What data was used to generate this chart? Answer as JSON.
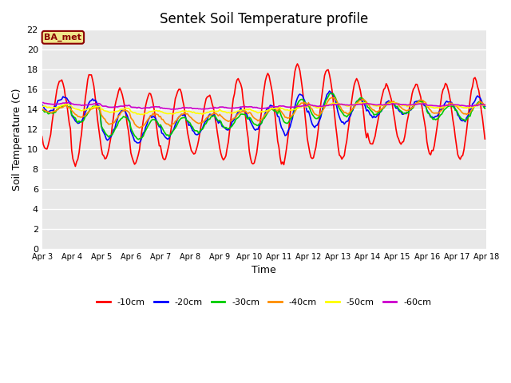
{
  "title": "Sentek Soil Temperature profile",
  "xlabel": "Time",
  "ylabel": "Soil Temperature (C)",
  "ylim": [
    0,
    22
  ],
  "yticks": [
    0,
    2,
    4,
    6,
    8,
    10,
    12,
    14,
    16,
    18,
    20,
    22
  ],
  "background_color": "#ffffff",
  "plot_bg_color": "#e8e8e8",
  "annotation_text": "BA_met",
  "annotation_bg": "#f0e68c",
  "annotation_border": "#8b0000",
  "series_colors": {
    "-10cm": "#ff0000",
    "-20cm": "#0000ff",
    "-30cm": "#00cc00",
    "-40cm": "#ff8c00",
    "-50cm": "#ffff00",
    "-60cm": "#cc00cc"
  },
  "x_tick_labels": [
    "Apr 3",
    "Apr 4",
    "Apr 5",
    "Apr 6",
    "Apr 7",
    "Apr 8",
    "Apr 9",
    "Apr 10",
    "Apr 11",
    "Apr 12",
    "Apr 13",
    "Apr 14",
    "Apr 15",
    "Apr 16",
    "Apr 17",
    "Apr 18"
  ],
  "line_width": 1.2
}
